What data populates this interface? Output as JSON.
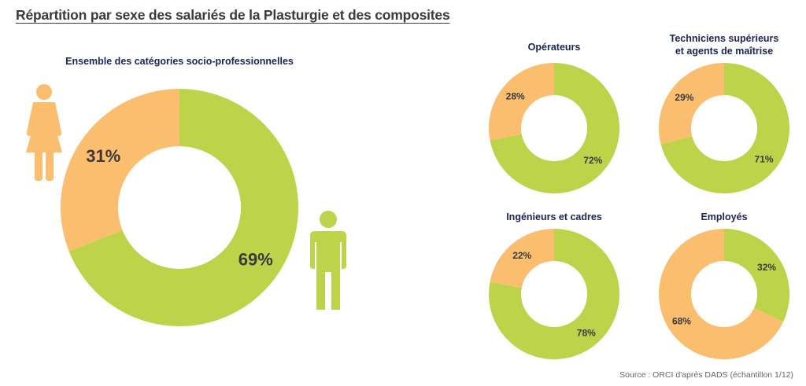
{
  "title": "Répartition par sexe des salariés de la Plasturgie et des composites",
  "source": "Source : ORCI d'après DADS (échantillon 1/12)",
  "colors": {
    "female": "#fbbe6f",
    "male": "#bdd34a",
    "text": "#3a3a3a",
    "title": "#1c2357"
  },
  "icons": {
    "female": "woman-icon",
    "male": "man-icon"
  },
  "chart_data": [
    {
      "type": "pie",
      "title": "Ensemble des catégories socio-professionnelles",
      "slices": [
        {
          "category": "female",
          "value": 31,
          "label": "31%"
        },
        {
          "category": "male",
          "value": 69,
          "label": "69%"
        }
      ]
    },
    {
      "type": "pie",
      "title": "Opérateurs",
      "slices": [
        {
          "category": "female",
          "value": 28,
          "label": "28%"
        },
        {
          "category": "male",
          "value": 72,
          "label": "72%"
        }
      ]
    },
    {
      "type": "pie",
      "title": "Techniciens supérieurs\net agents de maîtrise",
      "slices": [
        {
          "category": "female",
          "value": 29,
          "label": "29%"
        },
        {
          "category": "male",
          "value": 71,
          "label": "71%"
        }
      ]
    },
    {
      "type": "pie",
      "title": "Ingénieurs et cadres",
      "slices": [
        {
          "category": "female",
          "value": 22,
          "label": "22%"
        },
        {
          "category": "male",
          "value": 78,
          "label": "78%"
        }
      ]
    },
    {
      "type": "pie",
      "title": "Employés",
      "slices": [
        {
          "category": "female",
          "value": 68,
          "label": "68%"
        },
        {
          "category": "male",
          "value": 32,
          "label": "32%"
        }
      ]
    }
  ]
}
